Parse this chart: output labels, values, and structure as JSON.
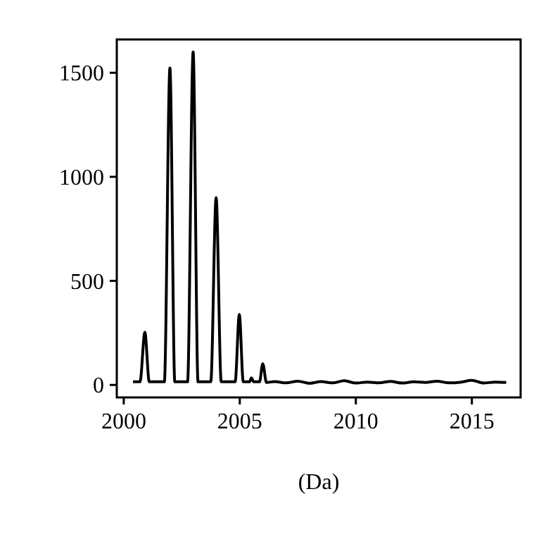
{
  "chart_data": {
    "type": "line",
    "xlabel": "(Da)",
    "xlim": [
      1999.7,
      2017.1
    ],
    "ylim": [
      -60,
      1660
    ],
    "xticks": [
      2000,
      2005,
      2010,
      2015
    ],
    "yticks": [
      0,
      500,
      1000,
      1500
    ],
    "grid": false,
    "marker": "none",
    "line_style": "solid",
    "series": [
      {
        "color": "#000000",
        "x": [
          2000.4,
          2000.7,
          2000.91,
          2001.1,
          2001.75,
          2001.99,
          2002.2,
          2002.75,
          2002.99,
          2003.2,
          2003.75,
          2003.98,
          2004.2,
          2004.8,
          2004.98,
          2005.15,
          2005.42,
          2005.5,
          2005.6,
          2005.85,
          2005.99,
          2006.15,
          2006.5,
          2007,
          2007.5,
          2008,
          2008.5,
          2009,
          2009.5,
          2010,
          2010.5,
          2011,
          2011.5,
          2012,
          2012.5,
          2013,
          2013.5,
          2014,
          2014.5,
          2015,
          2015.5,
          2016,
          2016.48
        ],
        "values": [
          15,
          15,
          253,
          15,
          15,
          1523,
          15,
          15,
          1600,
          15,
          15,
          900,
          15,
          15,
          339,
          15,
          15,
          34,
          15,
          15,
          102,
          12,
          16,
          10,
          18,
          8,
          16,
          10,
          20,
          9,
          14,
          10,
          17,
          9,
          15,
          12,
          18,
          10,
          13,
          22,
          9,
          14,
          12
        ]
      }
    ]
  }
}
